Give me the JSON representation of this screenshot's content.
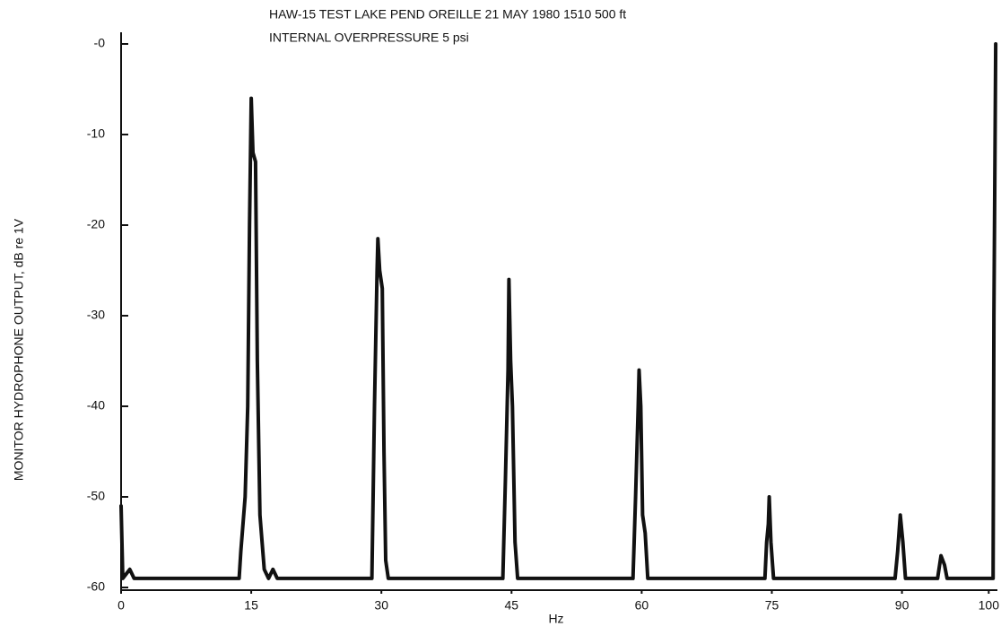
{
  "chart_data": {
    "type": "line",
    "title": "HAW-15 TEST   LAKE PEND OREILLE   21 MAY 1980   1510   500 ft",
    "subtitle": "INTERNAL OVERPRESSURE 5 psi",
    "x_label": "Hz",
    "y_label": "MONITOR HYDROPHONE OUTPUT, dB re 1V",
    "color": "#111111",
    "x": [
      0,
      0.2,
      1,
      1.5,
      13.6,
      13.8,
      14.3,
      14.6,
      14.8,
      15.0,
      15.2,
      15.5,
      15.7,
      16.0,
      16.5,
      17.0,
      17.5,
      18,
      28.9,
      29.2,
      29.5,
      29.6,
      29.8,
      30.1,
      30.3,
      30.5,
      30.8,
      44.0,
      44.3,
      44.6,
      44.7,
      44.9,
      45.1,
      45.4,
      45.7,
      59.0,
      59.3,
      59.6,
      59.7,
      59.9,
      60.1,
      60.4,
      60.7,
      74.2,
      74.4,
      74.6,
      74.7,
      74.9,
      75.2,
      89.2,
      89.5,
      89.8,
      90.1,
      90.4,
      94.1,
      94.5,
      94.9,
      95.2,
      100.5,
      100.6,
      100.8
    ],
    "values": [
      -51,
      -59,
      -58,
      -59,
      -59,
      -56,
      -50,
      -40,
      -20,
      -6,
      -12,
      -13,
      -35,
      -52,
      -58,
      -59,
      -58,
      -59,
      -59,
      -40,
      -25,
      -21.5,
      -25,
      -27,
      -45,
      -57,
      -59,
      -59,
      -48,
      -36,
      -26,
      -35,
      -40,
      -55,
      -59,
      -59,
      -50,
      -40,
      -36,
      -40,
      -52,
      -54,
      -59,
      -59,
      -55,
      -53,
      -50,
      -55,
      -59,
      -59,
      -56,
      -52,
      -55,
      -59,
      -59,
      -56.5,
      -57.5,
      -59,
      -59,
      -30,
      0
    ],
    "xlim": [
      0,
      101
    ],
    "ylim": [
      -60,
      0
    ],
    "xticks": [
      0,
      15,
      30,
      45,
      60,
      75,
      90,
      100
    ],
    "yticks": [
      {
        "value": 0,
        "label": "-0"
      },
      -10,
      -20,
      -30,
      -40,
      -50,
      -60
    ]
  }
}
